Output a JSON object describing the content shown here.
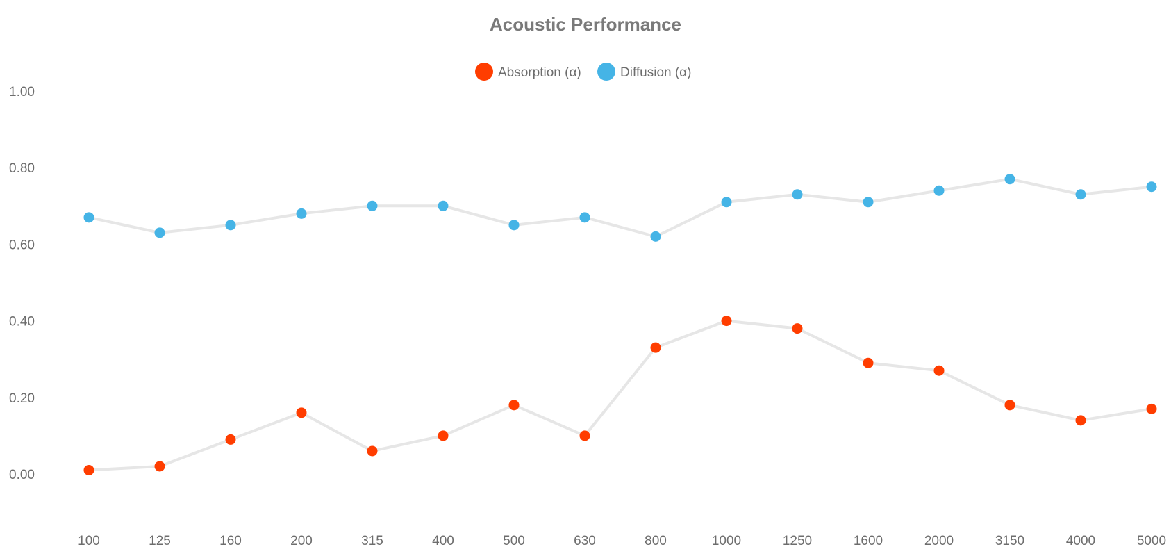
{
  "chart_data": {
    "type": "line",
    "title": "Acoustic Performance",
    "xlabel": "",
    "ylabel": "",
    "categories": [
      "100",
      "125",
      "160",
      "200",
      "315",
      "400",
      "500",
      "630",
      "800",
      "1000",
      "1250",
      "1600",
      "2000",
      "3150",
      "4000",
      "5000"
    ],
    "ylim": [
      -0.12,
      1.0
    ],
    "yticks": [
      "0.00",
      "0.20",
      "0.40",
      "0.60",
      "0.80",
      "1.00"
    ],
    "ytick_values": [
      0,
      0.2,
      0.4,
      0.6,
      0.8,
      1.0
    ],
    "grid": false,
    "legend_position": "top-center",
    "line_color": "#e6e6e6",
    "series": [
      {
        "name": "Absorption (α)",
        "color": "#ff3d00",
        "values": [
          0.01,
          0.02,
          0.09,
          0.16,
          0.06,
          0.1,
          0.18,
          0.1,
          0.33,
          0.4,
          0.38,
          0.29,
          0.27,
          0.18,
          0.14,
          0.17
        ]
      },
      {
        "name": "Diffusion (α)",
        "color": "#45b4e6",
        "values": [
          0.67,
          0.63,
          0.65,
          0.68,
          0.7,
          0.7,
          0.65,
          0.67,
          0.62,
          0.71,
          0.73,
          0.71,
          0.74,
          0.77,
          0.73,
          0.75
        ]
      }
    ]
  }
}
